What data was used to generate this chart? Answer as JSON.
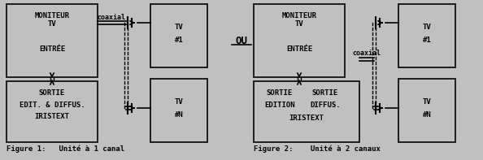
{
  "bg_color": "#c0c0c0",
  "box_edge_color": "#000000",
  "text_color": "#000000",
  "fig_width": 5.94,
  "fig_height": 1.97,
  "dpi": 100,
  "caption1": "Figure 1:   Unité à 1 canal",
  "caption2": "Figure 2:    Unité à 2 canaux",
  "ou_text": "OU"
}
